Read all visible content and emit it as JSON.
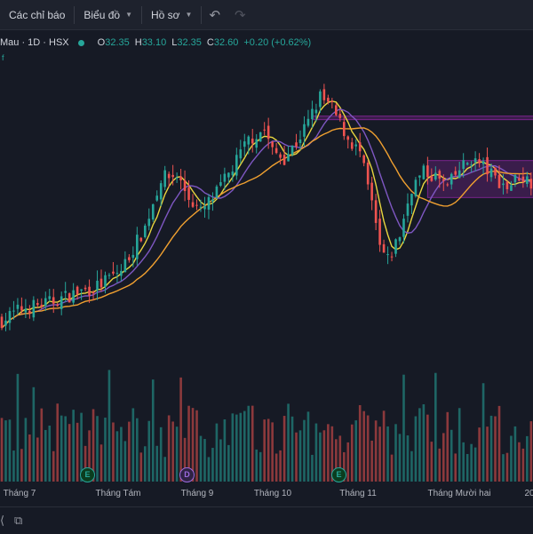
{
  "toolbar": {
    "indicators_label": "Các chỉ báo",
    "chart_label": "Biểu đồ",
    "profile_label": "Hồ sơ",
    "undo_icon": "undo-icon",
    "redo_icon": "redo-icon"
  },
  "legend": {
    "symbol": "Mau · 1D · HSX",
    "open_key": "O",
    "open": "32.35",
    "high_key": "H",
    "high": "33.10",
    "low_key": "L",
    "low": "32.35",
    "close_key": "C",
    "close": "32.60",
    "change": "+0.20 (+0.62%)",
    "small_mark": "f"
  },
  "events": [
    {
      "label": "E",
      "kind": "earnings"
    },
    {
      "label": "D",
      "kind": "dividend"
    },
    {
      "label": "E",
      "kind": "earnings"
    }
  ],
  "x_labels": [
    "Tháng 7",
    "Tháng Tám",
    "Tháng 9",
    "Tháng 10",
    "Tháng 11",
    "Tháng Mười hai",
    "20"
  ],
  "colors": {
    "up": "#26a69a",
    "down": "#ef5350",
    "ma_fast": "#e8d53f",
    "ma_mid": "#7e57c2",
    "ma_slow": "#f0a030",
    "zone": "#9c27b0"
  },
  "chart_data": {
    "type": "candlestick",
    "title": "",
    "anchors": [
      [
        0,
        17.2
      ],
      [
        5,
        18.0
      ],
      [
        12,
        18.4
      ],
      [
        18,
        19.0
      ],
      [
        24,
        19.5
      ],
      [
        30,
        20.6
      ],
      [
        36,
        23.5
      ],
      [
        40,
        26.8
      ],
      [
        44,
        27.0
      ],
      [
        47,
        25.5
      ],
      [
        50,
        24.5
      ],
      [
        54,
        25.8
      ],
      [
        58,
        27.5
      ],
      [
        62,
        29.4
      ],
      [
        66,
        30.1
      ],
      [
        68,
        28.6
      ],
      [
        71,
        28.2
      ],
      [
        74,
        29.2
      ],
      [
        77,
        30.6
      ],
      [
        80,
        32.3
      ],
      [
        83,
        31.5
      ],
      [
        87,
        29.5
      ],
      [
        90,
        28.5
      ],
      [
        93,
        25.0
      ],
      [
        95,
        22.1
      ],
      [
        97,
        21.2
      ],
      [
        100,
        23.0
      ],
      [
        103,
        26.2
      ],
      [
        106,
        27.2
      ],
      [
        109,
        26.9
      ],
      [
        112,
        26.2
      ],
      [
        115,
        27.4
      ],
      [
        118,
        28.1
      ],
      [
        121,
        27.6
      ],
      [
        124,
        26.8
      ],
      [
        127,
        26.2
      ],
      [
        130,
        27.0
      ],
      [
        133,
        26.6
      ]
    ],
    "ma_periods": [
      5,
      10,
      20
    ],
    "y_range": [
      14.0,
      33.8
    ],
    "zones": [
      {
        "start_index": 78,
        "end_index": 133,
        "top": 31.0,
        "bottom": 30.8
      },
      {
        "start_index": 107,
        "end_index": 133,
        "top": 28.0,
        "bottom": 25.5
      }
    ]
  }
}
